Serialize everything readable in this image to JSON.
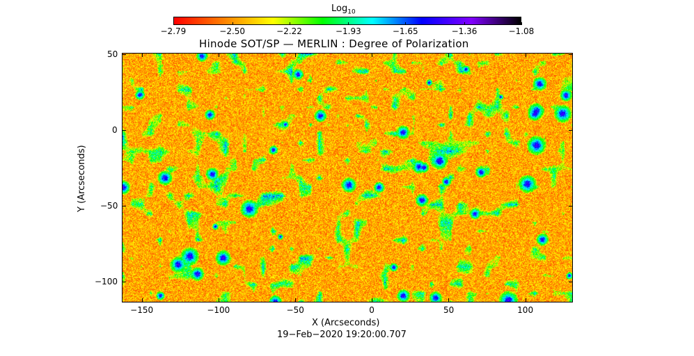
{
  "chart_data": {
    "type": "heatmap",
    "title": "Hinode SOT/SP — MERLIN : Degree of Polarization",
    "xlabel": "X (Arcseconds)",
    "ylabel": "Y (Arcseconds)",
    "timestamp": "19−Feb−2020 19:20:00.707",
    "xlim": [
      -163,
      131
    ],
    "ylim": [
      -114,
      51
    ],
    "xticks": [
      -150,
      -100,
      -50,
      0,
      50,
      100
    ],
    "xtick_labels": [
      "−150",
      "−100",
      "−50",
      "0",
      "50",
      "100"
    ],
    "yticks": [
      50,
      0,
      -50,
      -100
    ],
    "ytick_labels": [
      "50",
      "0",
      "−50",
      "−100"
    ],
    "colorbar": {
      "label_base": "Log",
      "label_sub": "10",
      "min": -2.79,
      "max": -1.08,
      "ticks": [
        -2.79,
        -2.5,
        -2.22,
        -1.93,
        -1.65,
        -1.36,
        -1.08
      ],
      "tick_labels": [
        "−2.79",
        "−2.50",
        "−2.22",
        "−1.93",
        "−1.65",
        "−1.36",
        "−1.08"
      ],
      "colormap": [
        "#ff0000",
        "#ff8000",
        "#ffff00",
        "#00ff00",
        "#00ffff",
        "#0000ff",
        "#8000ff",
        "#000000"
      ]
    }
  }
}
